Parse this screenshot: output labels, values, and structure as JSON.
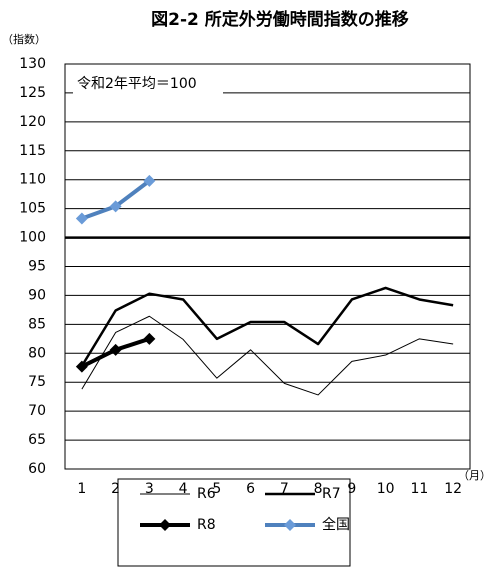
{
  "chart_data": {
    "type": "line",
    "title": "図2-2 所定外労働時間指数の推移",
    "y_axis_label": "（指数）",
    "x_axis_label": "（月）",
    "annotation": "令和2年平均＝100",
    "categories": [
      "1",
      "2",
      "3",
      "4",
      "5",
      "6",
      "7",
      "8",
      "9",
      "10",
      "11",
      "12"
    ],
    "series": [
      {
        "name": "R6",
        "color": "#000000",
        "width": 1,
        "marker": false,
        "values": [
          73.8,
          83.6,
          86.4,
          82.4,
          75.7,
          80.6,
          74.8,
          72.8,
          78.6,
          79.7,
          82.5,
          81.6
        ]
      },
      {
        "name": "R7",
        "color": "#000000",
        "width": 2.5,
        "marker": false,
        "values": [
          77.8,
          87.4,
          90.3,
          89.3,
          82.5,
          85.4,
          85.4,
          81.6,
          89.3,
          91.3,
          89.3,
          88.3
        ]
      },
      {
        "name": "R8",
        "color": "#000000",
        "width": 4,
        "marker": true,
        "values": [
          77.7,
          80.6,
          82.5,
          null,
          null,
          null,
          null,
          null,
          null,
          null,
          null,
          null
        ]
      },
      {
        "name": "全国",
        "color": "#4f81bd",
        "width": 4,
        "marker": true,
        "marker_color": "#6a9bd8",
        "values": [
          103.3,
          105.4,
          109.8,
          null,
          null,
          null,
          null,
          null,
          null,
          null,
          null,
          null
        ]
      }
    ],
    "ylim": [
      60,
      130
    ],
    "yticks": [
      60,
      65,
      70,
      75,
      80,
      85,
      90,
      95,
      100,
      105,
      110,
      115,
      120,
      125,
      130
    ],
    "reference_line": 100,
    "grid": true
  }
}
